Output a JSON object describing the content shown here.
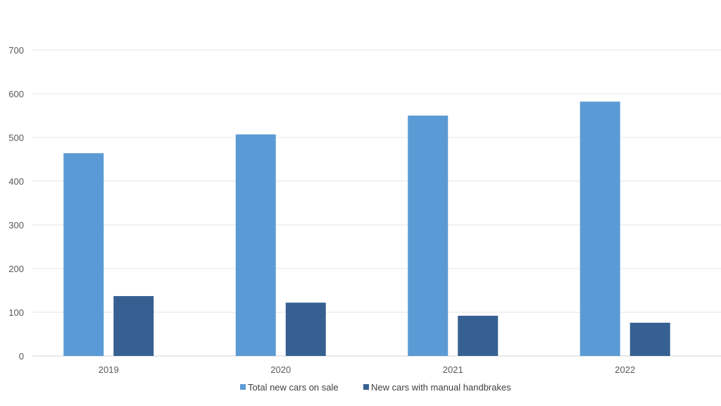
{
  "chart_data": {
    "type": "bar",
    "title": "",
    "xlabel": "",
    "ylabel": "",
    "categories": [
      "2019",
      "2020",
      "2021",
      "2022"
    ],
    "series": [
      {
        "name": "Total new cars on sale",
        "values": [
          464,
          507,
          550,
          582
        ],
        "color": "#5b9bd5"
      },
      {
        "name": "New cars with manual handbrakes",
        "values": [
          137,
          122,
          92,
          76
        ],
        "color": "#376092"
      }
    ],
    "ylim": [
      0,
      700
    ],
    "yticks": [
      "0",
      "100",
      "200",
      "300",
      "400",
      "500",
      "600",
      "700"
    ],
    "grid": true,
    "legend_position": "bottom"
  }
}
